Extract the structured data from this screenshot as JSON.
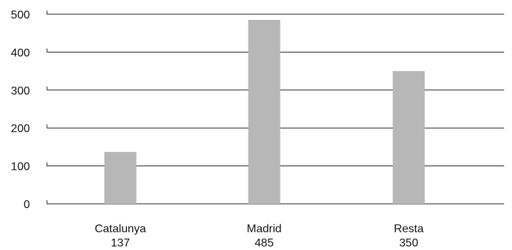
{
  "chart_data": {
    "type": "bar",
    "categories": [
      "Catalunya",
      "Madrid",
      "Resta"
    ],
    "values": [
      137,
      485,
      350
    ],
    "value_labels": [
      "137",
      "485",
      "350"
    ],
    "y_ticks": [
      "0",
      "100",
      "200",
      "300",
      "400",
      "500"
    ],
    "title": "",
    "xlabel": "",
    "ylabel": "",
    "ylim": [
      0,
      500
    ],
    "grid": true,
    "legend": "none",
    "colors": {
      "bar": "#b7b7b7",
      "grid": "#1a1a1a",
      "text": "#111111"
    }
  }
}
